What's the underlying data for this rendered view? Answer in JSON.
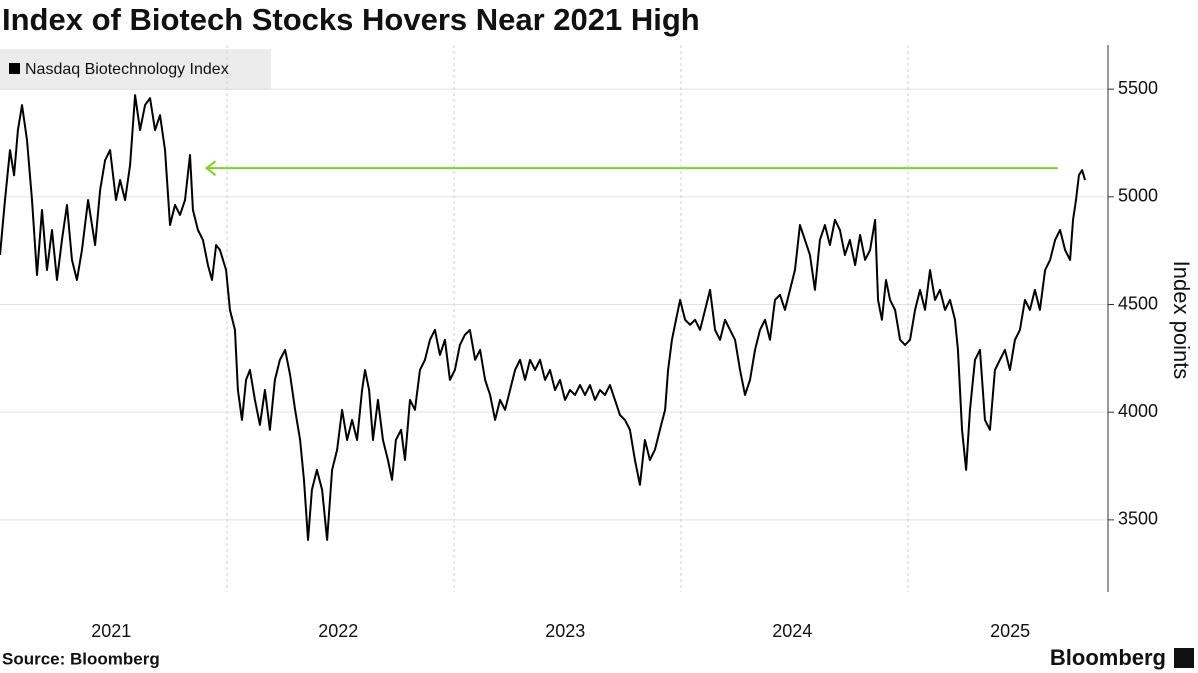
{
  "chart_data": {
    "type": "line",
    "title": "Index of Biotech Stocks Hovers Near 2021 High",
    "y_label": "Index points",
    "source": "Source: Bloomberg",
    "brand": "Bloomberg",
    "legend": "top-left",
    "grid": true,
    "xlim": [
      2021,
      2025.881
    ],
    "ylim": [
      3165,
      5705
    ],
    "yticks": [
      3500,
      4000,
      4500,
      5000,
      5500
    ],
    "xticks": [
      {
        "value": 2021.49,
        "label": "2021"
      },
      {
        "value": 2022.49,
        "label": "2022"
      },
      {
        "value": 2023.49,
        "label": "2023"
      },
      {
        "value": 2024.49,
        "label": "2024"
      },
      {
        "value": 2025.45,
        "label": "2025"
      }
    ],
    "xgrid": [
      2022,
      2023,
      2024,
      2025
    ],
    "arrow": {
      "y": 5133,
      "x": [
        2025.66,
        2021.91
      ],
      "color": "#7ed321"
    },
    "x": [
      2021,
      2021.022,
      2021.044,
      2021.062,
      2021.079,
      2021.097,
      2021.119,
      2021.141,
      2021.163,
      2021.185,
      2021.207,
      2021.229,
      2021.251,
      2021.273,
      2021.295,
      2021.317,
      2021.339,
      2021.361,
      2021.388,
      2021.419,
      2021.441,
      2021.463,
      2021.485,
      2021.511,
      2021.529,
      2021.551,
      2021.573,
      2021.595,
      2021.617,
      2021.639,
      2021.661,
      2021.683,
      2021.705,
      2021.727,
      2021.749,
      2021.771,
      2021.793,
      2021.815,
      2021.837,
      2021.85,
      2021.872,
      2021.894,
      2021.916,
      2021.934,
      2021.952,
      2021.969,
      2021.996,
      2022.013,
      2022.035,
      2022.048,
      2022.066,
      2022.084,
      2022.101,
      2022.123,
      2022.145,
      2022.167,
      2022.189,
      2022.211,
      2022.233,
      2022.256,
      2022.278,
      2022.3,
      2022.322,
      2022.339,
      2022.357,
      2022.374,
      2022.396,
      2022.419,
      2022.441,
      2022.463,
      2022.485,
      2022.507,
      2022.529,
      2022.551,
      2022.573,
      2022.595,
      2022.608,
      2022.626,
      2022.643,
      2022.665,
      2022.687,
      2022.709,
      2022.727,
      2022.744,
      2022.767,
      2022.784,
      2022.806,
      2022.828,
      2022.85,
      2022.872,
      2022.894,
      2022.916,
      2022.938,
      2022.96,
      2022.982,
      2023.004,
      2023.026,
      2023.048,
      2023.07,
      2023.093,
      2023.115,
      2023.137,
      2023.159,
      2023.181,
      2023.203,
      2023.225,
      2023.247,
      2023.269,
      2023.291,
      2023.313,
      2023.335,
      2023.357,
      2023.379,
      2023.401,
      2023.423,
      2023.445,
      2023.467,
      2023.489,
      2023.511,
      2023.533,
      2023.555,
      2023.577,
      2023.599,
      2023.621,
      2023.643,
      2023.665,
      2023.687,
      2023.709,
      2023.731,
      2023.753,
      2023.775,
      2023.797,
      2023.819,
      2023.841,
      2023.863,
      2023.885,
      2023.907,
      2023.93,
      2023.943,
      2023.96,
      2023.978,
      2023.996,
      2024.018,
      2024.04,
      2024.062,
      2024.084,
      2024.106,
      2024.128,
      2024.15,
      2024.172,
      2024.194,
      2024.216,
      2024.238,
      2024.26,
      2024.282,
      2024.304,
      2024.326,
      2024.348,
      2024.37,
      2024.392,
      2024.414,
      2024.436,
      2024.458,
      2024.48,
      2024.502,
      2024.524,
      2024.546,
      2024.568,
      2024.59,
      2024.612,
      2024.634,
      2024.656,
      2024.678,
      2024.7,
      2024.722,
      2024.744,
      2024.767,
      2024.789,
      2024.811,
      2024.833,
      2024.855,
      2024.868,
      2024.885,
      2024.903,
      2024.921,
      2024.943,
      2024.965,
      2024.987,
      2025.009,
      2025.031,
      2025.053,
      2025.075,
      2025.097,
      2025.119,
      2025.141,
      2025.163,
      2025.185,
      2025.207,
      2025.22,
      2025.238,
      2025.256,
      2025.273,
      2025.295,
      2025.317,
      2025.339,
      2025.361,
      2025.383,
      2025.405,
      2025.427,
      2025.449,
      2025.471,
      2025.493,
      2025.515,
      2025.537,
      2025.559,
      2025.581,
      2025.604,
      2025.626,
      2025.648,
      2025.67,
      2025.692,
      2025.714,
      2025.727,
      2025.74,
      2025.753,
      2025.767,
      2025.78
    ],
    "series": [
      {
        "name": "Nasdaq Biotechnology Index",
        "color": "#000000",
        "values": [
          4730,
          4985,
          5217,
          5100,
          5310,
          5426,
          5263,
          4985,
          4637,
          4939,
          4660,
          4846,
          4614,
          4800,
          4962,
          4707,
          4614,
          4753,
          4985,
          4776,
          5031,
          5170,
          5217,
          4985,
          5078,
          4985,
          5147,
          5472,
          5310,
          5426,
          5458,
          5310,
          5379,
          5217,
          4869,
          4962,
          4916,
          4985,
          5194,
          4939,
          4846,
          4800,
          4683,
          4614,
          4776,
          4753,
          4660,
          4475,
          4382,
          4103,
          3964,
          4150,
          4196,
          4057,
          3941,
          4103,
          3918,
          4150,
          4243,
          4289,
          4173,
          4011,
          3871,
          3686,
          3407,
          3639,
          3732,
          3639,
          3407,
          3732,
          3825,
          4011,
          3871,
          3964,
          3871,
          4103,
          4196,
          4103,
          3871,
          4057,
          3871,
          3778,
          3686,
          3871,
          3918,
          3778,
          4057,
          4011,
          4196,
          4243,
          4336,
          4382,
          4266,
          4336,
          4150,
          4196,
          4312,
          4359,
          4382,
          4243,
          4289,
          4150,
          4080,
          3964,
          4057,
          4011,
          4103,
          4196,
          4243,
          4150,
          4243,
          4196,
          4243,
          4150,
          4196,
          4103,
          4150,
          4057,
          4103,
          4080,
          4126,
          4080,
          4126,
          4057,
          4103,
          4080,
          4126,
          4057,
          3987,
          3964,
          3918,
          3778,
          3663,
          3871,
          3778,
          3825,
          3918,
          4011,
          4196,
          4336,
          4429,
          4521,
          4429,
          4406,
          4429,
          4382,
          4475,
          4568,
          4382,
          4336,
          4429,
          4382,
          4336,
          4196,
          4080,
          4150,
          4289,
          4382,
          4429,
          4336,
          4521,
          4545,
          4475,
          4568,
          4660,
          4869,
          4800,
          4730,
          4568,
          4800,
          4869,
          4776,
          4893,
          4846,
          4730,
          4800,
          4683,
          4823,
          4707,
          4753,
          4893,
          4521,
          4429,
          4614,
          4521,
          4475,
          4336,
          4312,
          4336,
          4475,
          4568,
          4475,
          4660,
          4521,
          4568,
          4475,
          4521,
          4429,
          4289,
          3918,
          3732,
          4011,
          4243,
          4289,
          3964,
          3918,
          4196,
          4243,
          4289,
          4196,
          4336,
          4382,
          4521,
          4475,
          4568,
          4475,
          4660,
          4707,
          4800,
          4846,
          4753,
          4707,
          4893,
          4985,
          5101,
          5124,
          5078
        ]
      }
    ]
  }
}
